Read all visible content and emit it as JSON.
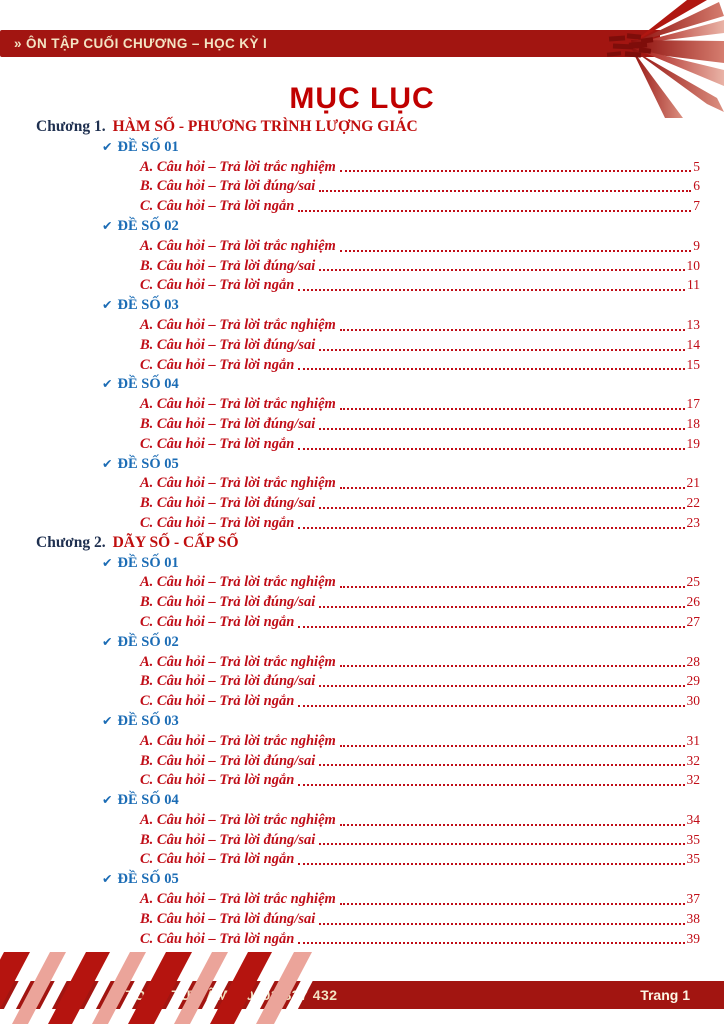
{
  "page": {
    "title": "MỤC LỤC"
  },
  "header": {
    "bar_text": "» ÔN TẬP CUỐI CHƯƠNG – HỌC KỲ I"
  },
  "footer": {
    "brand": "» TOÁN TỪ TÂM – 0901 837 432",
    "page_label": "Trang 1"
  },
  "icons": {
    "section_check": "✔",
    "burst_decoration": "red-rays-burst",
    "stripes_decoration": "diagonal-red-stripes"
  },
  "colors": {
    "bar_red": "#a21511",
    "bar_text_cream": "#f3e3c3",
    "title_red": "#c00000",
    "chapter_label_navy": "#1f3050",
    "chapter_title_red": "#c00d0d",
    "section_blue": "#1b6cb5",
    "item_red": "#c00d17",
    "stripe_dark": "#b5140f",
    "stripe_pink": "#eba49a"
  },
  "toc": {
    "item_labels": [
      "A. Câu hỏi – Trả lời trắc nghiệm",
      "B. Câu hỏi – Trả lời đúng/sai ",
      "C. Câu hỏi – Trả lời ngắn "
    ],
    "chapters": [
      {
        "label": "Chương 1.",
        "title": "HÀM SỐ - PHƯƠNG TRÌNH LƯỢNG GIÁC",
        "sections": [
          {
            "label": "ĐỀ SỐ 01",
            "pages": [
              "5",
              "6",
              "7"
            ]
          },
          {
            "label": "ĐỀ SỐ 02",
            "pages": [
              "9",
              "10",
              "11"
            ]
          },
          {
            "label": "ĐỀ SỐ 03",
            "pages": [
              "13",
              "14",
              "15"
            ]
          },
          {
            "label": "ĐỀ SỐ 04",
            "pages": [
              "17",
              "18",
              "19"
            ]
          },
          {
            "label": "ĐỀ SỐ 05",
            "pages": [
              "21",
              "22",
              "23"
            ]
          }
        ]
      },
      {
        "label": "Chương 2.",
        "title": "DÃY SỐ - CẤP SỐ",
        "sections": [
          {
            "label": "ĐỀ SỐ 01",
            "pages": [
              "25",
              "26",
              "27"
            ]
          },
          {
            "label": "ĐỀ SỐ 02",
            "pages": [
              "28",
              "29",
              "30"
            ]
          },
          {
            "label": "ĐỀ SỐ 03",
            "pages": [
              "31",
              "32",
              "32"
            ]
          },
          {
            "label": "ĐỀ SỐ 04",
            "pages": [
              "34",
              "35",
              "35"
            ]
          },
          {
            "label": "ĐỀ SỐ 05",
            "pages": [
              "37",
              "38",
              "39"
            ]
          }
        ]
      }
    ]
  }
}
